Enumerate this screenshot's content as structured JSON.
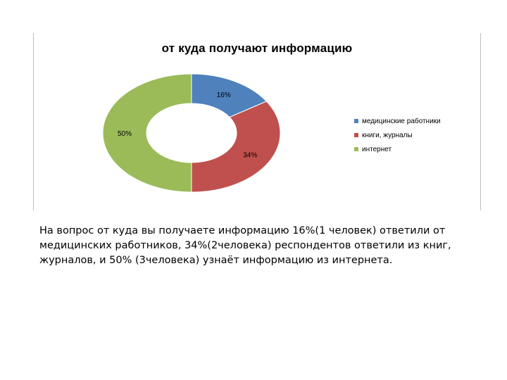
{
  "chart_data": {
    "type": "pie",
    "title": "от куда получают информацию",
    "categories": [
      "медицинские работники",
      "книги, журналы",
      "интернет"
    ],
    "values": [
      16,
      34,
      50
    ],
    "labels": [
      "16%",
      "34%",
      "50%"
    ],
    "colors": [
      "#4f81bd",
      "#c0504d",
      "#9bbb59"
    ],
    "legend_position": "right"
  },
  "caption": {
    "line1": "На вопрос от куда вы получаете информацию 16%(1 человек)  ответили от",
    "line2": "медицинских работников, 34%(2человека) респондентов ответили из книг,",
    "line3": "журналов,  и 50% (3человека) узнаёт информацию из интернета."
  }
}
